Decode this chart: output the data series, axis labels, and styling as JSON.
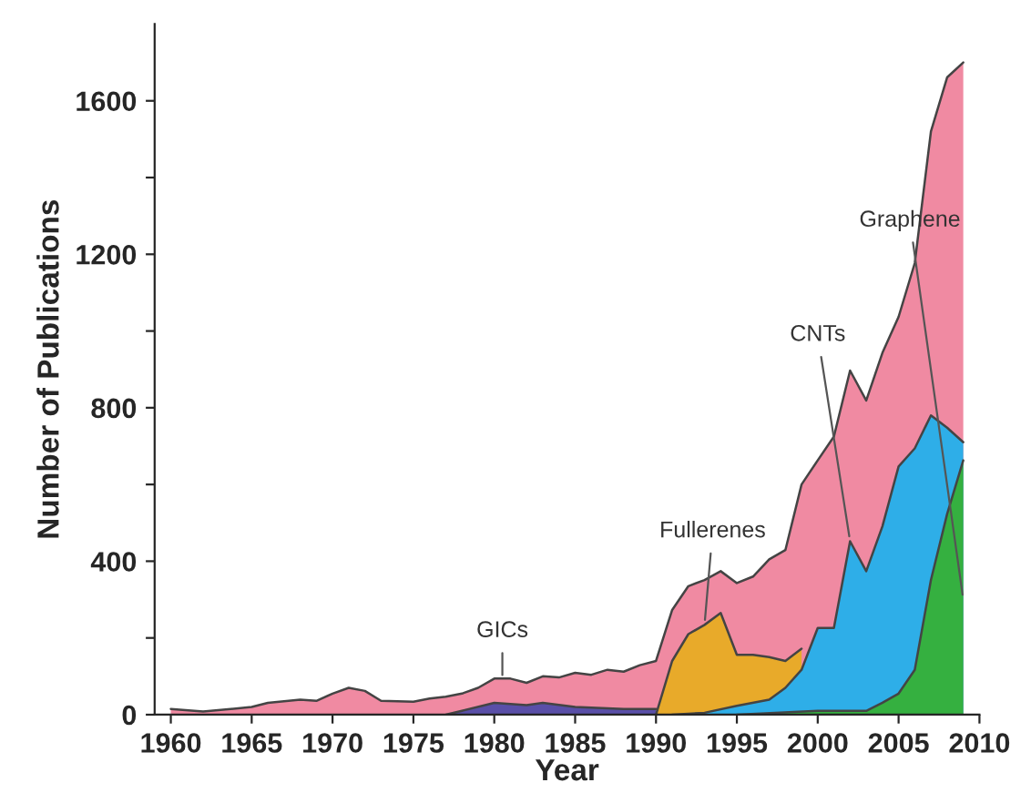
{
  "chart_data": {
    "type": "area",
    "xlabel": "Year",
    "ylabel": "Number of Publications",
    "xlim": [
      1959,
      2010
    ],
    "xticks": [
      1960,
      1965,
      1970,
      1975,
      1980,
      1985,
      1990,
      1995,
      2000,
      2005,
      2010
    ],
    "ylim": [
      0,
      1800
    ],
    "yticks": [
      0,
      {
        "value": 200,
        "label": null
      },
      400,
      {
        "value": 600,
        "label": null
      },
      800,
      {
        "value": 1000,
        "label": null
      },
      1200,
      {
        "value": 1400,
        "label": null
      },
      1600
    ],
    "grid": false,
    "legend": false,
    "series": [
      {
        "color": "#f08aa2",
        "x": [
          1960,
          1962,
          1965,
          1966,
          1968,
          1969,
          1970,
          1971,
          1972,
          1973,
          1975,
          1976,
          1977,
          1978,
          1979,
          1980,
          1981,
          1982,
          1983,
          1984,
          1985,
          1986,
          1987,
          1988,
          1989,
          1990,
          1991,
          1992,
          1993,
          1994,
          1995,
          1996,
          1997,
          1998,
          1999,
          2000,
          2001,
          2002,
          2003,
          2004,
          2005,
          2006,
          2007,
          2008,
          2009
        ],
        "values": [
          15,
          8,
          20,
          31,
          39,
          36,
          55,
          70,
          62,
          36,
          34,
          42,
          47,
          55,
          70,
          94,
          94,
          83,
          100,
          97,
          109,
          104,
          117,
          112,
          129,
          140,
          273,
          335,
          351,
          374,
          343,
          360,
          405,
          429,
          600,
          663,
          725,
          897,
          819,
          943,
          1037,
          1177,
          1520,
          1661,
          1700
        ]
      },
      {
        "color": "#5a4fa8",
        "x": [
          1977,
          1978,
          1980,
          1982,
          1983,
          1985,
          1988,
          1990
        ],
        "values": [
          0,
          10,
          31,
          25,
          31,
          20,
          15,
          15
        ]
      },
      {
        "color": "#e8aa2a",
        "x": [
          1990,
          1991,
          1992,
          1993,
          1994,
          1995,
          1996,
          1997,
          1998,
          1999
        ],
        "values": [
          0,
          140,
          210,
          234,
          265,
          156,
          156,
          150,
          140,
          172
        ]
      },
      {
        "color": "#2eaee8",
        "x": [
          1991,
          1993,
          1995,
          1997,
          1998,
          1999,
          2000,
          2001,
          2002,
          2003,
          2004,
          2005,
          2006,
          2007,
          2008,
          2009
        ],
        "values": [
          0,
          5,
          23,
          39,
          70,
          117,
          226,
          226,
          452,
          374,
          491,
          647,
          694,
          780,
          748,
          710
        ]
      },
      {
        "color": "#35b040",
        "x": [
          1995,
          2000,
          2003,
          2004,
          2005,
          2006,
          2007,
          2008,
          2009
        ],
        "values": [
          0,
          10,
          10,
          31,
          55,
          117,
          351,
          523,
          663
        ]
      }
    ],
    "annotations": [
      {
        "text": "GICs",
        "x": 1980.5,
        "y": 90
      },
      {
        "text": "Fullerenes",
        "x": 1993,
        "y": 234
      },
      {
        "text": "CNTs",
        "x": 2002,
        "y": 452
      },
      {
        "text": "Graphene",
        "x": 2009,
        "y": 300
      }
    ]
  }
}
